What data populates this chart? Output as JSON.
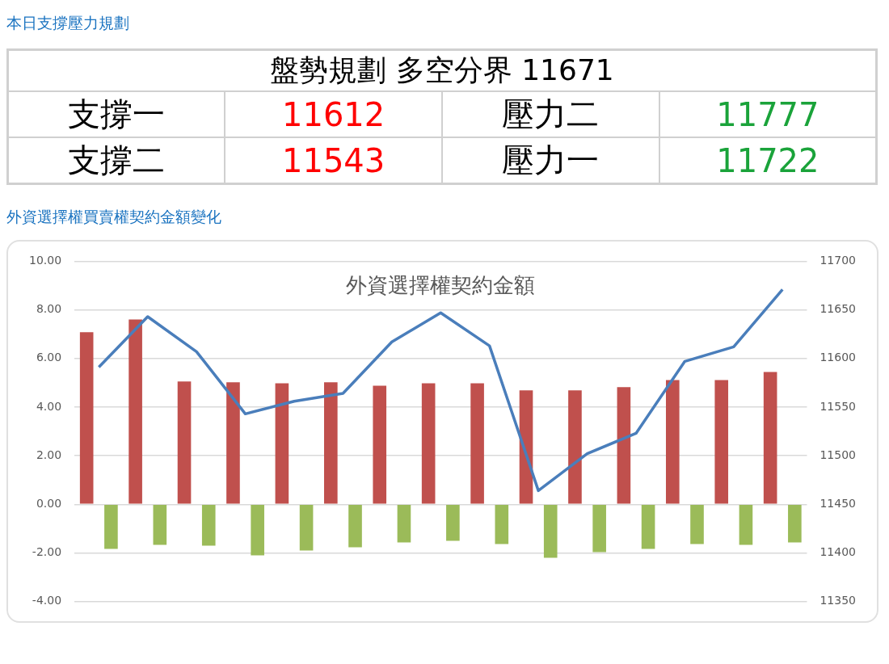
{
  "chart_data": {
    "type": "bar",
    "title": "外資選擇權契約金額",
    "subtitle": "外資選擇權買賣權契約金額變化",
    "annotations": [
      "本日支撐壓力規劃",
      "盤勢規劃 多空分界 11671",
      "支撐一",
      "11612",
      "壓力二",
      "11777",
      "支撐二",
      "11543",
      "壓力一",
      "11722"
    ],
    "categories": [
      null,
      null,
      null,
      null,
      null,
      null,
      null,
      null,
      null,
      null,
      null,
      null,
      null,
      null,
      null
    ],
    "series": [
      {
        "color": "#c0504d",
        "values": [
          7.08,
          7.6,
          5.05,
          5.02,
          4.98,
          5.02,
          4.88,
          4.98,
          4.98,
          4.69,
          4.69,
          4.82,
          5.11,
          5.11,
          5.44
        ]
      },
      {
        "color": "#9bbb59",
        "values": [
          -1.84,
          -1.67,
          -1.7,
          -2.1,
          -1.9,
          -1.77,
          -1.57,
          -1.5,
          -1.64,
          -2.2,
          -1.97,
          -1.84,
          -1.64,
          -1.67,
          -1.57
        ]
      },
      {
        "type": "line",
        "axis": "y2",
        "color": "#4a7ebb",
        "values": [
          11591,
          11643,
          11607,
          11543,
          11556,
          11564,
          11617,
          11647,
          11613,
          11464,
          11502,
          11523,
          11597,
          11612,
          11671
        ]
      }
    ],
    "ylim": [
      -4,
      10
    ],
    "yticks": [
      {
        "value": -4,
        "label": "-4.00"
      },
      {
        "value": -2,
        "label": "-2.00"
      },
      {
        "value": 0,
        "label": "0.00"
      },
      {
        "value": 2,
        "label": "2.00"
      },
      {
        "value": 4,
        "label": "4.00"
      },
      {
        "value": 6,
        "label": "6.00"
      },
      {
        "value": 8,
        "label": "8.00"
      },
      {
        "value": 10,
        "label": "10.00"
      }
    ],
    "y2lim": [
      11350,
      11700
    ],
    "y2ticks": [
      11350,
      11400,
      11450,
      11500,
      11550,
      11600,
      11650,
      11700
    ],
    "grid": "y",
    "legend": false,
    "marker": "none",
    "line_style": "solid"
  }
}
